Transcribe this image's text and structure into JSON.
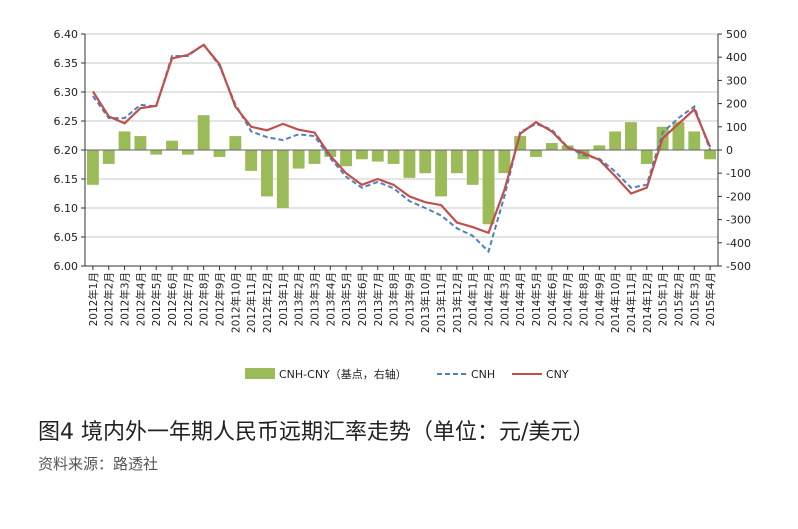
{
  "figure": {
    "caption": "图4  境内外一年期人民币远期汇率走势（单位：元/美元）",
    "source": "资料来源：路透社"
  },
  "chart_data": {
    "type": "line",
    "x": [
      "2012年1月",
      "2012年2月",
      "2012年3月",
      "2012年4月",
      "2012年5月",
      "2012年6月",
      "2012年7月",
      "2012年8月",
      "2012年9月",
      "2012年10月",
      "2012年11月",
      "2012年12月",
      "2013年1月",
      "2013年2月",
      "2013年3月",
      "2013年4月",
      "2013年5月",
      "2013年6月",
      "2013年7月",
      "2013年8月",
      "2013年9月",
      "2013年10月",
      "2013年11月",
      "2013年12月",
      "2014年1月",
      "2014年2月",
      "2014年3月",
      "2014年4月",
      "2014年5月",
      "2014年6月",
      "2014年7月",
      "2014年8月",
      "2014年9月",
      "2014年10月",
      "2014年11月",
      "2014年12月",
      "2015年1月",
      "2015年2月",
      "2015年3月",
      "2015年4月"
    ],
    "y_left": {
      "min": 6.0,
      "max": 6.4,
      "ticks": [
        "6.00",
        "6.05",
        "6.10",
        "6.15",
        "6.20",
        "6.25",
        "6.30",
        "6.35",
        "6.40"
      ]
    },
    "y_right": {
      "min": -500,
      "max": 500,
      "ticks": [
        "-500",
        "-400",
        "-300",
        "-200",
        "-100",
        "0",
        "100",
        "200",
        "300",
        "400",
        "500"
      ]
    },
    "grid": "horizontal",
    "legend_position": "bottom",
    "series": [
      {
        "name": "CNH-CNY（基点，右轴）",
        "type": "area",
        "axis": "right",
        "color": "#9bbb59",
        "values": [
          -150,
          -60,
          80,
          60,
          -20,
          40,
          -20,
          150,
          -30,
          60,
          -90,
          -200,
          -250,
          -80,
          -60,
          -30,
          -70,
          -40,
          -50,
          -60,
          -120,
          -100,
          -200,
          -100,
          -150,
          -320,
          -100,
          60,
          -30,
          30,
          20,
          -40,
          20,
          80,
          120,
          -60,
          100,
          120,
          80,
          -40
        ]
      },
      {
        "name": "CNH",
        "type": "line",
        "axis": "left",
        "color": "#4f81bd",
        "dash": true,
        "values": [
          6.293,
          6.255,
          6.255,
          6.278,
          6.275,
          6.362,
          6.362,
          6.382,
          6.345,
          6.279,
          6.232,
          6.222,
          6.217,
          6.227,
          6.224,
          6.186,
          6.154,
          6.135,
          6.145,
          6.134,
          6.112,
          6.1,
          6.087,
          6.065,
          6.052,
          6.025,
          6.12,
          6.231,
          6.245,
          6.235,
          6.205,
          6.191,
          6.185,
          6.163,
          6.135,
          6.14,
          6.23,
          6.255,
          6.275,
          6.2
        ]
      },
      {
        "name": "CNY",
        "type": "line",
        "axis": "left",
        "color": "#c0504d",
        "dash": false,
        "values": [
          6.301,
          6.258,
          6.246,
          6.272,
          6.276,
          6.358,
          6.364,
          6.381,
          6.348,
          6.275,
          6.24,
          6.234,
          6.245,
          6.235,
          6.23,
          6.19,
          6.16,
          6.14,
          6.15,
          6.14,
          6.12,
          6.11,
          6.105,
          6.075,
          6.067,
          6.057,
          6.131,
          6.228,
          6.248,
          6.232,
          6.204,
          6.195,
          6.183,
          6.155,
          6.125,
          6.135,
          6.22,
          6.245,
          6.27,
          6.205
        ]
      }
    ]
  }
}
